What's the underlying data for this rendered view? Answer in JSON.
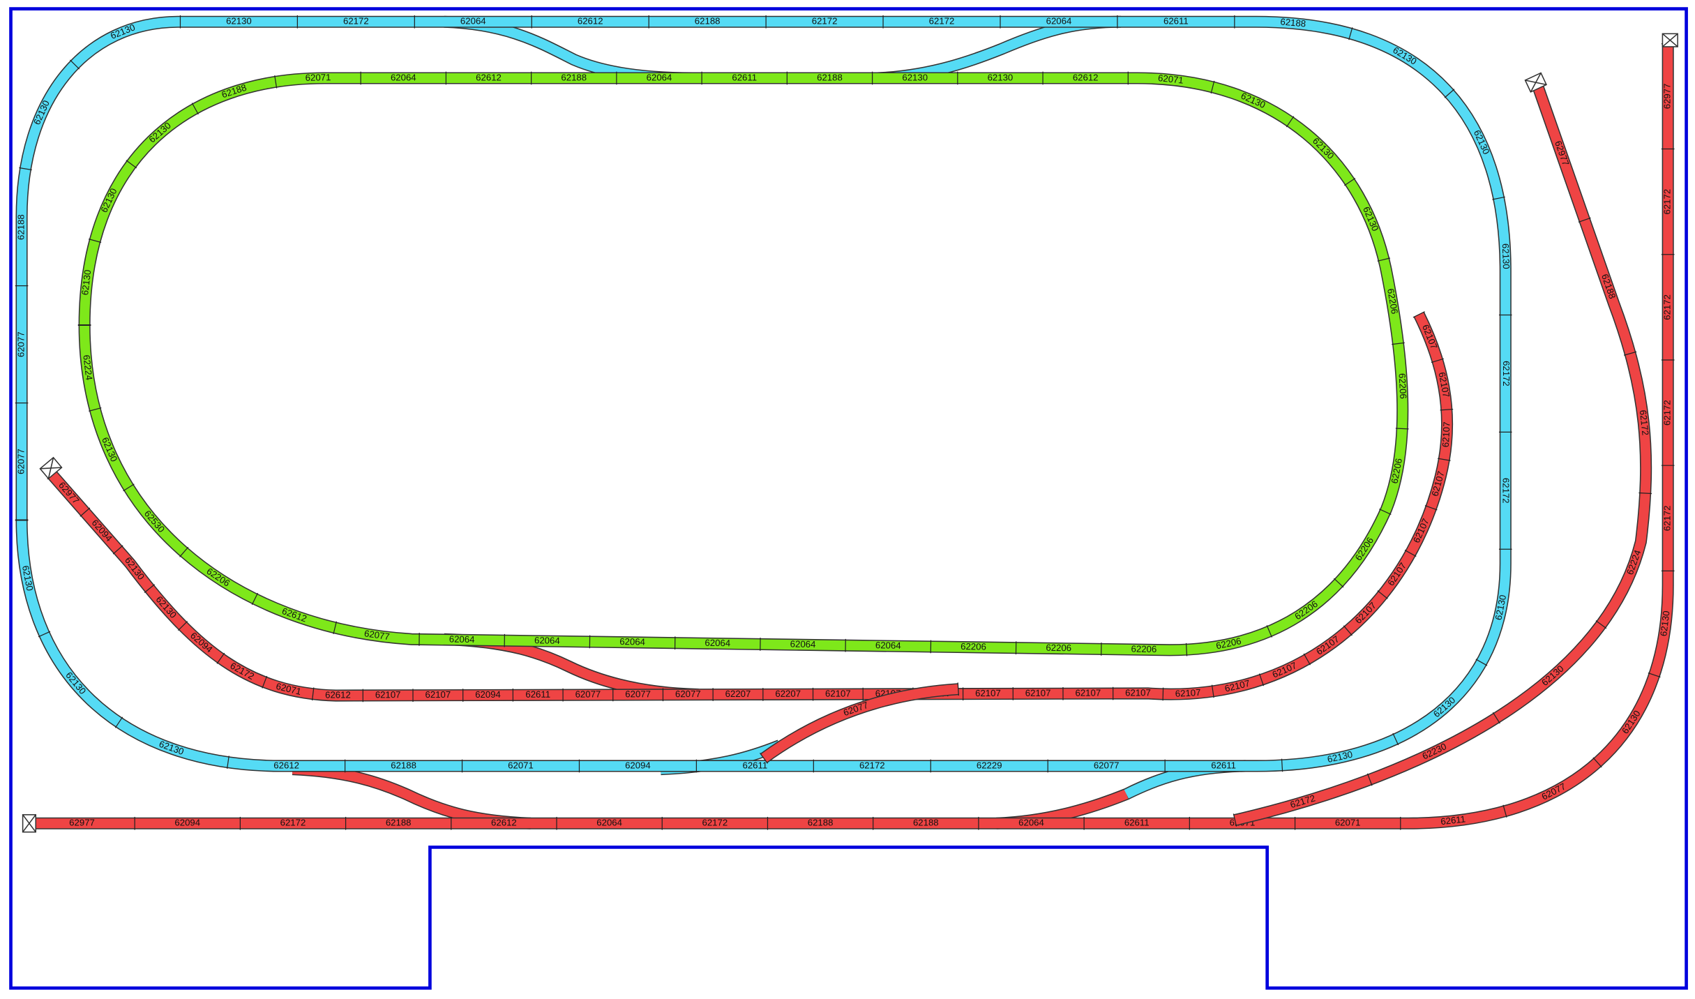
{
  "blue_loop": {
    "labels": [
      "62077",
      "62077",
      "62188",
      "62130",
      "62130",
      "62130",
      "62172",
      "62064",
      "62612",
      "62188",
      "62172",
      "62172",
      "62064",
      "62611",
      "62188",
      "62130",
      "62130",
      "62130",
      "62172",
      "62172",
      "62130",
      "62130",
      "62130",
      "62611",
      "62077",
      "62229",
      "62172",
      "62611",
      "62094",
      "62071",
      "62188",
      "62612",
      "62130",
      "62130",
      "62130"
    ]
  },
  "green_loop": {
    "labels": [
      "62130",
      "62130",
      "62130",
      "62188",
      "62071",
      "62064",
      "62612",
      "62188",
      "62064",
      "62611",
      "62188",
      "62130",
      "62130",
      "62612",
      "62071",
      "62130",
      "62130",
      "62130",
      "62206",
      "62206",
      "62206",
      "62206",
      "62206",
      "62206",
      "62206",
      "62206",
      "62206",
      "62064",
      "62064",
      "62064",
      "62064",
      "62064",
      "62064",
      "62077",
      "62612",
      "62206",
      "62530",
      "62130",
      "62224"
    ]
  },
  "red_inner_line": {
    "labels": [
      "62977",
      "62094",
      "62130",
      "62130",
      "62094",
      "62172",
      "62071",
      "62612",
      "62107",
      "62107",
      "62094",
      "62611",
      "62077",
      "62077",
      "62077",
      "62207",
      "62207",
      "62107",
      "62107",
      "62107",
      "62107",
      "62107",
      "62107",
      "62107",
      "62107",
      "62107",
      "62107",
      "62107",
      "62107",
      "62107",
      "62107",
      "62107",
      "62107",
      "62107",
      "62107"
    ]
  },
  "red_outer_line": {
    "labels": [
      "62977",
      "62094",
      "62172",
      "62188",
      "62612",
      "62064",
      "62172",
      "62188",
      "62188",
      "62064",
      "62611",
      "62071",
      "62071",
      "62611",
      "62077",
      "62130",
      "62130",
      "62172",
      "62172",
      "62172",
      "62172",
      "62977"
    ]
  },
  "red_diagonal_line": {
    "labels": [
      "62977",
      "62188",
      "62172",
      "62224",
      "62130",
      "62230",
      "62172"
    ]
  },
  "red_crossover": {
    "labels": [
      "62077"
    ]
  }
}
